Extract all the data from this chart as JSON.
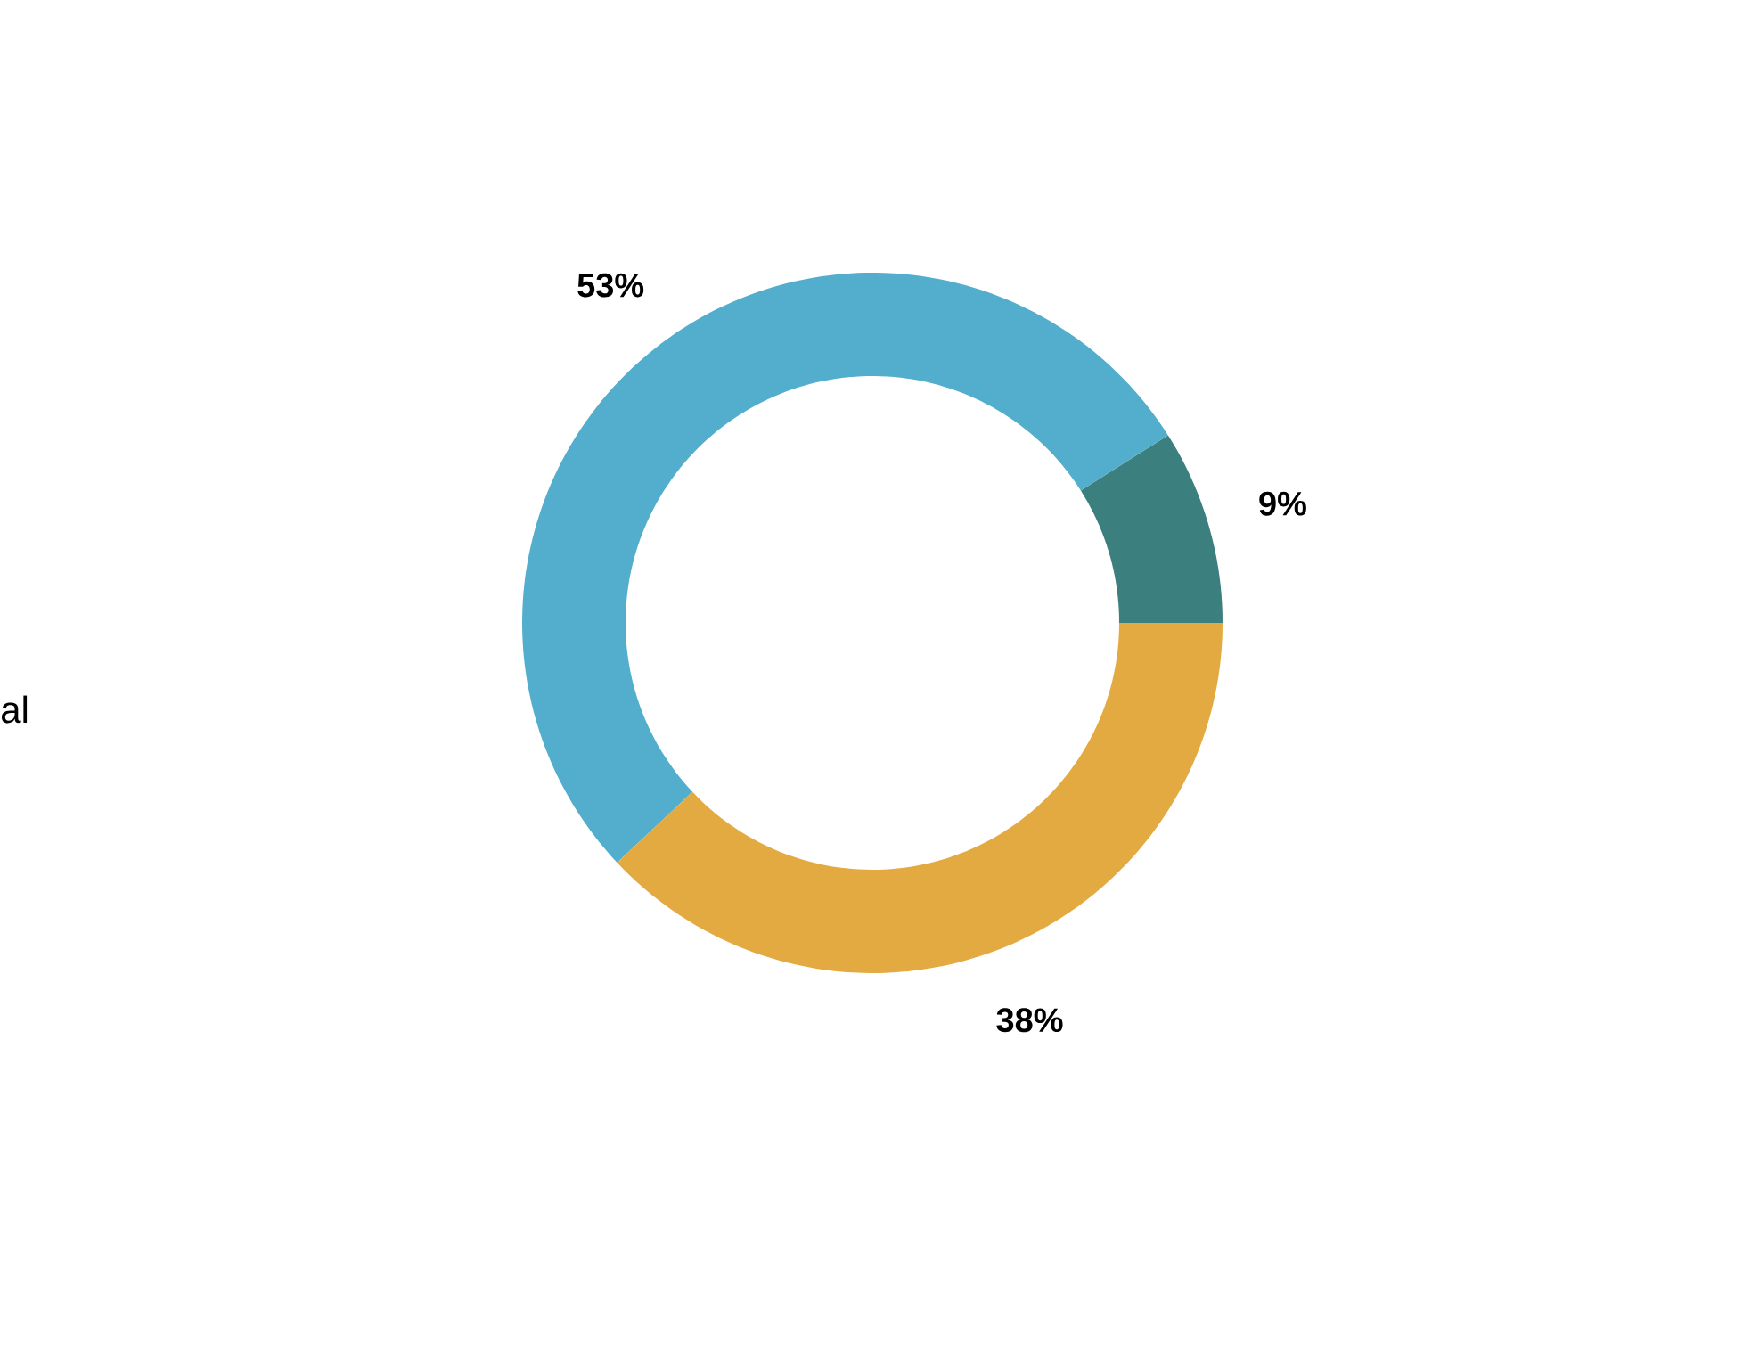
{
  "chart_data": {
    "type": "donut",
    "categories": [
      null,
      null,
      null
    ],
    "values": [
      9,
      53,
      38
    ],
    "colors": [
      "#3b7f7f",
      "#52aecc",
      "#e4aa42"
    ],
    "value_labels": [
      "9%",
      "53%",
      "38%"
    ],
    "annotations": [
      "al"
    ]
  }
}
